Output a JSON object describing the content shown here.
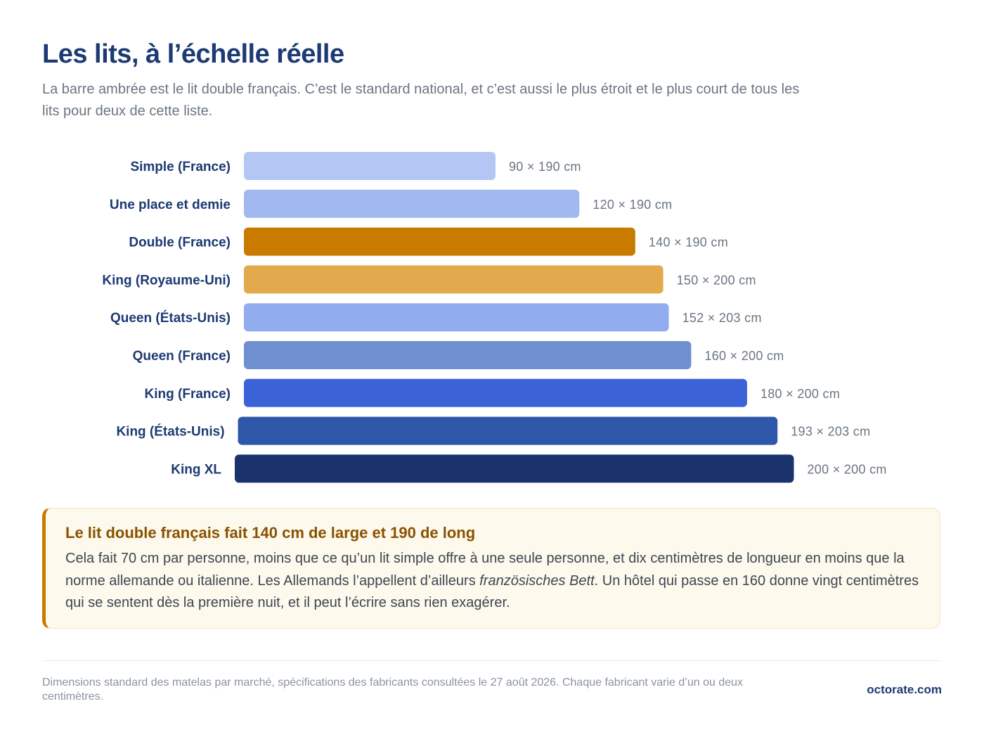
{
  "header": {
    "title": "Les lits, à l’échelle réelle",
    "subtitle": "La barre ambrée est le lit double français. C’est le standard national, et c’est aussi le plus étroit et le plus court de tous les lits pour deux de cette liste."
  },
  "chart_data": {
    "type": "bar",
    "orientation": "horizontal",
    "title": "",
    "xlabel": "",
    "ylabel": "",
    "grid": false,
    "legend": "none",
    "categories": [
      "Simple (France)",
      "Une place et demie",
      "Double (France)",
      "King (Royaume-Uni)",
      "Queen (États-Unis)",
      "Queen (France)",
      "King (France)",
      "King (États-Unis)",
      "King XL"
    ],
    "widths_cm": [
      90,
      120,
      140,
      150,
      152,
      160,
      180,
      193,
      200
    ],
    "lengths_cm": [
      190,
      190,
      190,
      200,
      203,
      200,
      200,
      203,
      200
    ],
    "value_labels": [
      "90 × 190 cm",
      "120 × 190 cm",
      "140 × 190 cm",
      "150 × 200 cm",
      "152 × 203 cm",
      "160 × 200 cm",
      "180 × 200 cm",
      "193 × 203 cm",
      "200 × 200 cm"
    ],
    "colors": [
      "#b3c6f4",
      "#a1b8f1",
      "#c97b00",
      "#e2aa4c",
      "#92adef",
      "#6f8fd0",
      "#3b63d7",
      "#2e57a9",
      "#1b336c"
    ],
    "highlight": "Double (France)"
  },
  "callout": {
    "title": "Le lit double français fait 140 cm de large et 190 de long",
    "body_before": "Cela fait 70 cm par personne, moins que ce qu’un lit simple offre à une seule personne, et dix centimètres de longueur en moins que la norme allemande ou italienne. Les Allemands l’appellent d’ailleurs ",
    "body_emphasis": "französisches Bett",
    "body_after": ". Un hôtel qui passe en 160 donne vingt centimètres qui se sentent dès la première nuit, et il peut l’écrire sans rien exagérer."
  },
  "footer": {
    "note": "Dimensions standard des matelas par marché, spécifications des fabricants consultées le 27 août 2026. Chaque fabricant varie d’un ou deux centimètres.",
    "brand": "octorate.com"
  }
}
